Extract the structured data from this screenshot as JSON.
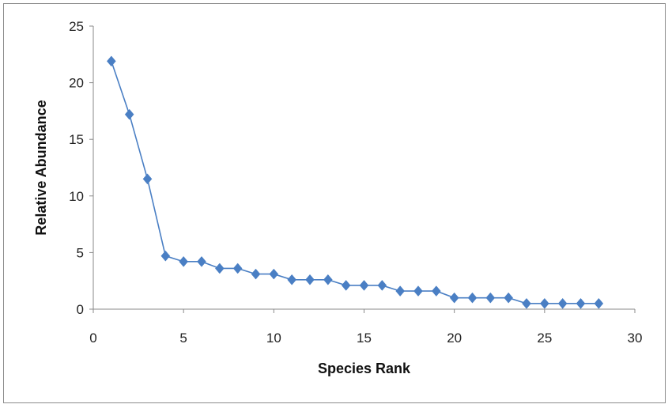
{
  "chart_data": {
    "type": "scatter",
    "title": "",
    "xlabel": "Species Rank",
    "ylabel": "Relative Abundance",
    "xlim": [
      0,
      30
    ],
    "ylim": [
      0,
      25
    ],
    "xticks": [
      0,
      5,
      10,
      15,
      20,
      25,
      30
    ],
    "yticks": [
      0,
      5,
      10,
      15,
      20,
      25
    ],
    "grid": false,
    "legend": "none",
    "series": [
      {
        "marker": "diamond",
        "line": true,
        "color": "#4a7fc4",
        "x": [
          1,
          2,
          3,
          4,
          5,
          6,
          7,
          8,
          9,
          10,
          11,
          12,
          13,
          14,
          15,
          16,
          17,
          18,
          19,
          20,
          21,
          22,
          23,
          24,
          25,
          26,
          27,
          28
        ],
        "y": [
          21.9,
          17.2,
          11.5,
          4.7,
          4.2,
          4.2,
          3.6,
          3.6,
          3.1,
          3.1,
          2.6,
          2.6,
          2.6,
          2.1,
          2.1,
          2.1,
          1.6,
          1.6,
          1.6,
          1.0,
          1.0,
          1.0,
          1.0,
          0.5,
          0.5,
          0.5,
          0.5,
          0.5
        ]
      }
    ]
  }
}
